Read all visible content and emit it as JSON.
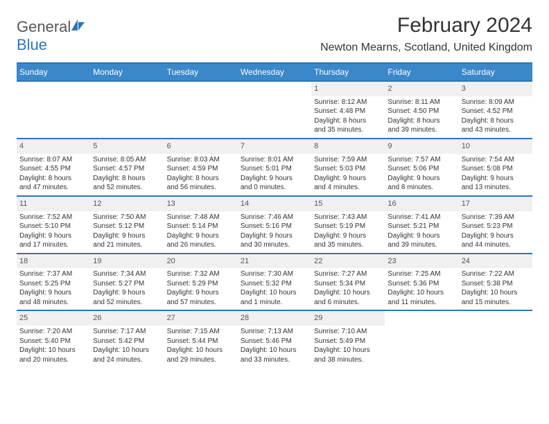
{
  "brand": {
    "part1": "General",
    "part2": "Blue"
  },
  "title": "February 2024",
  "location": "Newton Mearns, Scotland, United Kingdom",
  "colors": {
    "header_bg": "#3a87c9",
    "header_border": "#2a76b8",
    "daynum_bg": "#f0f0f0",
    "text": "#333333",
    "background": "#ffffff"
  },
  "day_headers": [
    "Sunday",
    "Monday",
    "Tuesday",
    "Wednesday",
    "Thursday",
    "Friday",
    "Saturday"
  ],
  "weeks": [
    [
      null,
      null,
      null,
      null,
      {
        "n": "1",
        "sr": "Sunrise: 8:12 AM",
        "ss": "Sunset: 4:48 PM",
        "d1": "Daylight: 8 hours",
        "d2": "and 35 minutes."
      },
      {
        "n": "2",
        "sr": "Sunrise: 8:11 AM",
        "ss": "Sunset: 4:50 PM",
        "d1": "Daylight: 8 hours",
        "d2": "and 39 minutes."
      },
      {
        "n": "3",
        "sr": "Sunrise: 8:09 AM",
        "ss": "Sunset: 4:52 PM",
        "d1": "Daylight: 8 hours",
        "d2": "and 43 minutes."
      }
    ],
    [
      {
        "n": "4",
        "sr": "Sunrise: 8:07 AM",
        "ss": "Sunset: 4:55 PM",
        "d1": "Daylight: 8 hours",
        "d2": "and 47 minutes."
      },
      {
        "n": "5",
        "sr": "Sunrise: 8:05 AM",
        "ss": "Sunset: 4:57 PM",
        "d1": "Daylight: 8 hours",
        "d2": "and 52 minutes."
      },
      {
        "n": "6",
        "sr": "Sunrise: 8:03 AM",
        "ss": "Sunset: 4:59 PM",
        "d1": "Daylight: 8 hours",
        "d2": "and 56 minutes."
      },
      {
        "n": "7",
        "sr": "Sunrise: 8:01 AM",
        "ss": "Sunset: 5:01 PM",
        "d1": "Daylight: 9 hours",
        "d2": "and 0 minutes."
      },
      {
        "n": "8",
        "sr": "Sunrise: 7:59 AM",
        "ss": "Sunset: 5:03 PM",
        "d1": "Daylight: 9 hours",
        "d2": "and 4 minutes."
      },
      {
        "n": "9",
        "sr": "Sunrise: 7:57 AM",
        "ss": "Sunset: 5:06 PM",
        "d1": "Daylight: 9 hours",
        "d2": "and 8 minutes."
      },
      {
        "n": "10",
        "sr": "Sunrise: 7:54 AM",
        "ss": "Sunset: 5:08 PM",
        "d1": "Daylight: 9 hours",
        "d2": "and 13 minutes."
      }
    ],
    [
      {
        "n": "11",
        "sr": "Sunrise: 7:52 AM",
        "ss": "Sunset: 5:10 PM",
        "d1": "Daylight: 9 hours",
        "d2": "and 17 minutes."
      },
      {
        "n": "12",
        "sr": "Sunrise: 7:50 AM",
        "ss": "Sunset: 5:12 PM",
        "d1": "Daylight: 9 hours",
        "d2": "and 21 minutes."
      },
      {
        "n": "13",
        "sr": "Sunrise: 7:48 AM",
        "ss": "Sunset: 5:14 PM",
        "d1": "Daylight: 9 hours",
        "d2": "and 26 minutes."
      },
      {
        "n": "14",
        "sr": "Sunrise: 7:46 AM",
        "ss": "Sunset: 5:16 PM",
        "d1": "Daylight: 9 hours",
        "d2": "and 30 minutes."
      },
      {
        "n": "15",
        "sr": "Sunrise: 7:43 AM",
        "ss": "Sunset: 5:19 PM",
        "d1": "Daylight: 9 hours",
        "d2": "and 35 minutes."
      },
      {
        "n": "16",
        "sr": "Sunrise: 7:41 AM",
        "ss": "Sunset: 5:21 PM",
        "d1": "Daylight: 9 hours",
        "d2": "and 39 minutes."
      },
      {
        "n": "17",
        "sr": "Sunrise: 7:39 AM",
        "ss": "Sunset: 5:23 PM",
        "d1": "Daylight: 9 hours",
        "d2": "and 44 minutes."
      }
    ],
    [
      {
        "n": "18",
        "sr": "Sunrise: 7:37 AM",
        "ss": "Sunset: 5:25 PM",
        "d1": "Daylight: 9 hours",
        "d2": "and 48 minutes."
      },
      {
        "n": "19",
        "sr": "Sunrise: 7:34 AM",
        "ss": "Sunset: 5:27 PM",
        "d1": "Daylight: 9 hours",
        "d2": "and 52 minutes."
      },
      {
        "n": "20",
        "sr": "Sunrise: 7:32 AM",
        "ss": "Sunset: 5:29 PM",
        "d1": "Daylight: 9 hours",
        "d2": "and 57 minutes."
      },
      {
        "n": "21",
        "sr": "Sunrise: 7:30 AM",
        "ss": "Sunset: 5:32 PM",
        "d1": "Daylight: 10 hours",
        "d2": "and 1 minute."
      },
      {
        "n": "22",
        "sr": "Sunrise: 7:27 AM",
        "ss": "Sunset: 5:34 PM",
        "d1": "Daylight: 10 hours",
        "d2": "and 6 minutes."
      },
      {
        "n": "23",
        "sr": "Sunrise: 7:25 AM",
        "ss": "Sunset: 5:36 PM",
        "d1": "Daylight: 10 hours",
        "d2": "and 11 minutes."
      },
      {
        "n": "24",
        "sr": "Sunrise: 7:22 AM",
        "ss": "Sunset: 5:38 PM",
        "d1": "Daylight: 10 hours",
        "d2": "and 15 minutes."
      }
    ],
    [
      {
        "n": "25",
        "sr": "Sunrise: 7:20 AM",
        "ss": "Sunset: 5:40 PM",
        "d1": "Daylight: 10 hours",
        "d2": "and 20 minutes."
      },
      {
        "n": "26",
        "sr": "Sunrise: 7:17 AM",
        "ss": "Sunset: 5:42 PM",
        "d1": "Daylight: 10 hours",
        "d2": "and 24 minutes."
      },
      {
        "n": "27",
        "sr": "Sunrise: 7:15 AM",
        "ss": "Sunset: 5:44 PM",
        "d1": "Daylight: 10 hours",
        "d2": "and 29 minutes."
      },
      {
        "n": "28",
        "sr": "Sunrise: 7:13 AM",
        "ss": "Sunset: 5:46 PM",
        "d1": "Daylight: 10 hours",
        "d2": "and 33 minutes."
      },
      {
        "n": "29",
        "sr": "Sunrise: 7:10 AM",
        "ss": "Sunset: 5:49 PM",
        "d1": "Daylight: 10 hours",
        "d2": "and 38 minutes."
      },
      null,
      null
    ]
  ]
}
